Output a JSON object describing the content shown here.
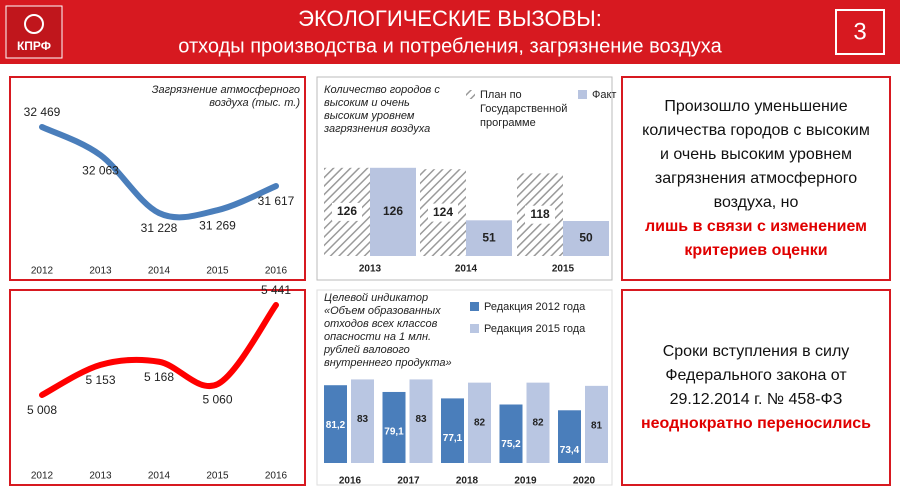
{
  "header": {
    "logo": "КПРФ",
    "title": "ЭКОЛОГИЧЕСКИЕ ВЫЗОВЫ:",
    "subtitle": "отходы производства и потребления, загрязнение воздуха",
    "page_number": "3"
  },
  "chart_data": [
    {
      "type": "line",
      "title": "Загрязнение атмосферного воздуха (тыс. т.)",
      "categories": [
        "2012",
        "2013",
        "2014",
        "2015",
        "2016"
      ],
      "values": [
        32469,
        32063,
        31228,
        31269,
        31617
      ],
      "value_labels": [
        "32 469",
        "32 063",
        "31 228",
        "31 269",
        "31 617"
      ],
      "color": "#4a7ebb",
      "smooth": true
    },
    {
      "type": "bar",
      "title": "Количество городов с высоким и очень высоким уровнем загрязнения воздуха",
      "categories": [
        "2013",
        "2014",
        "2015"
      ],
      "series": [
        {
          "name": "План по Государственной программе",
          "color": "#9a9a9a",
          "pattern": "hatch",
          "values": [
            126,
            124,
            118
          ]
        },
        {
          "name": "Факт",
          "color": "#b8c4e0",
          "values": [
            126,
            51,
            50
          ]
        }
      ],
      "ylim": [
        0,
        140
      ]
    },
    {
      "type": "line",
      "categories": [
        "2012",
        "2013",
        "2014",
        "2015",
        "2016"
      ],
      "values": [
        5008,
        5153,
        5168,
        5060,
        5441
      ],
      "value_labels": [
        "5 008",
        "5 153",
        "5 168",
        "5 060",
        "5 441"
      ],
      "color": "#ff0000",
      "smooth": true
    },
    {
      "type": "bar",
      "title": "Целевой индикатор «Объем образованных отходов всех классов опасности на 1 млн. рублей валового внутреннего продукта»",
      "categories": [
        "2016",
        "2017",
        "2018",
        "2019",
        "2020"
      ],
      "series": [
        {
          "name": "Редакция 2012 года",
          "color": "#4a7ebb",
          "values": [
            81.2,
            79.1,
            77.1,
            75.2,
            73.4
          ],
          "value_labels": [
            "81,2",
            "79,1",
            "77,1",
            "75,2",
            "73,4"
          ]
        },
        {
          "name": "Редакция 2015 года",
          "color": "#b9c6e2",
          "values": [
            83,
            83,
            82,
            82,
            81
          ]
        }
      ],
      "ylim": [
        57,
        85
      ]
    }
  ],
  "notes": [
    {
      "text": "Произошло уменьшение количества городов с высоким и очень высоким уровнем загрязнения атмосферного воздуха, но",
      "highlight": "лишь в связи с изменением критериев оценки"
    },
    {
      "text": "Сроки вступления в силу Федерального закона от 29.12.2014 г. № 458-ФЗ",
      "highlight": "неоднократно переносились"
    }
  ]
}
